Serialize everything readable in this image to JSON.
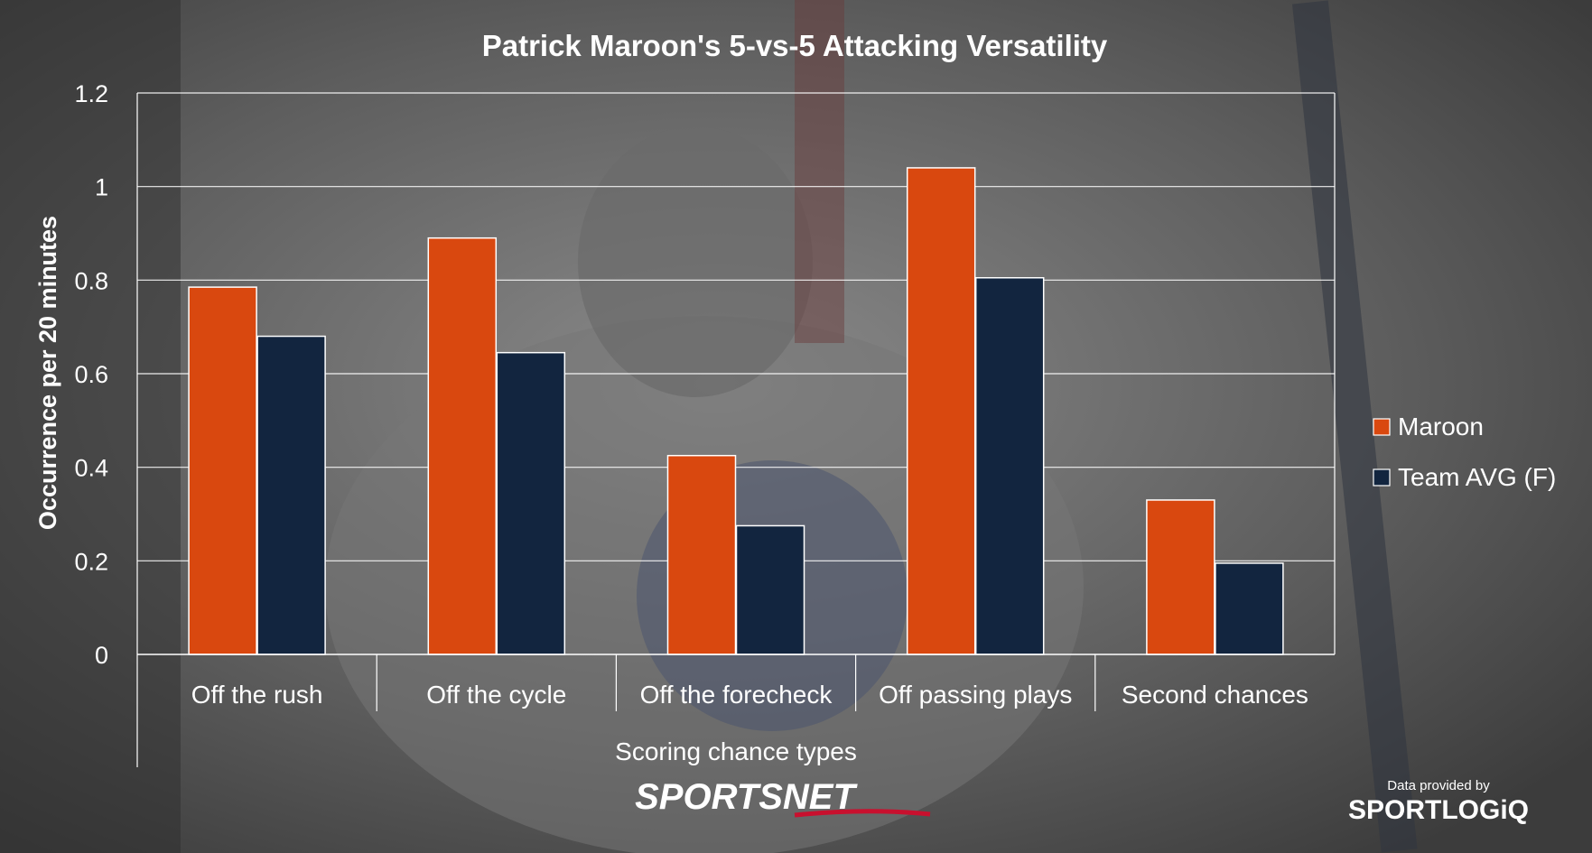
{
  "chart_data": {
    "type": "bar",
    "title": "Patrick Maroon's 5-vs-5 Attacking Versatility",
    "xlabel": "Scoring chance types",
    "ylabel": "Occurrence per 20 minutes",
    "categories": [
      "Off the rush",
      "Off the cycle",
      "Off the forecheck",
      "Off passing plays",
      "Second chances"
    ],
    "series": [
      {
        "name": "Maroon",
        "color": "#d9480f",
        "values": [
          0.785,
          0.89,
          0.425,
          1.04,
          0.33
        ]
      },
      {
        "name": "Team AVG (F)",
        "color": "#12253f",
        "values": [
          0.68,
          0.645,
          0.275,
          0.805,
          0.195
        ]
      }
    ],
    "ylim": [
      0,
      1.2
    ],
    "yticks": [
      "0",
      "0.2",
      "0.4",
      "0.6",
      "0.8",
      "1",
      "1.2"
    ],
    "ytick_values": [
      0,
      0.2,
      0.4,
      0.6,
      0.8,
      1.0,
      1.2
    ],
    "grid": true,
    "legend_position": "right"
  },
  "branding": {
    "logo_text": "SPORTSNET",
    "data_credit": "Data provided by",
    "credit_logo": "SPORTLOGiQ"
  }
}
